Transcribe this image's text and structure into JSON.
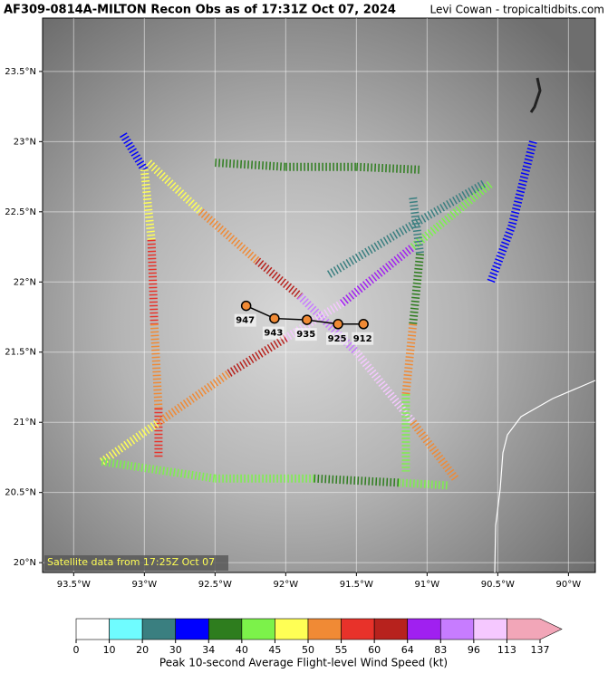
{
  "chart_data": {
    "type": "recon-map",
    "title": "AF309-0814A-MILTON Recon Obs as of 17:31Z Oct 07, 2024",
    "credit": "Levi Cowan - tropicaltidbits.com",
    "satellite_note": "Satellite data from 17:25Z Oct 07",
    "xlim": [
      -93.72,
      -89.81
    ],
    "ylim": [
      19.93,
      23.88
    ],
    "xticks": [
      {
        "value": -93.5,
        "label": "93.5°W"
      },
      {
        "value": -93,
        "label": "93°W"
      },
      {
        "value": -92.5,
        "label": "92.5°W"
      },
      {
        "value": -92,
        "label": "92°W"
      },
      {
        "value": -91.5,
        "label": "91.5°W"
      },
      {
        "value": -91,
        "label": "91°W"
      },
      {
        "value": -90.5,
        "label": "90.5°W"
      },
      {
        "value": -90,
        "label": "90°W"
      }
    ],
    "yticks": [
      {
        "value": 20,
        "label": "20°N"
      },
      {
        "value": 20.5,
        "label": "20.5°N"
      },
      {
        "value": 21,
        "label": "21°N"
      },
      {
        "value": 21.5,
        "label": "21.5°N"
      },
      {
        "value": 22,
        "label": "22°N"
      },
      {
        "value": 22.5,
        "label": "22.5°N"
      },
      {
        "value": 23,
        "label": "23°N"
      },
      {
        "value": 23.5,
        "label": "23.5°N"
      }
    ],
    "grid": true,
    "fixes": {
      "lon": [
        -92.28,
        -92.08,
        -91.85,
        -91.63,
        -91.45
      ],
      "lat": [
        21.83,
        21.74,
        21.73,
        21.7,
        21.7
      ],
      "pressure": [
        947,
        943,
        935,
        925,
        912
      ],
      "color": "#f08a35"
    },
    "legs": [
      {
        "lon": [
          -93.15,
          -93.0,
          -92.95,
          -92.93,
          -92.9,
          -92.9
        ],
        "lat": [
          23.05,
          22.8,
          22.3,
          21.7,
          21.1,
          20.75
        ],
        "wind": [
          32,
          45,
          55,
          50,
          55,
          50
        ]
      },
      {
        "lon": [
          -92.97,
          -92.6,
          -92.2,
          -91.9,
          -91.5,
          -91.1,
          -90.8
        ],
        "lat": [
          22.85,
          22.5,
          22.15,
          21.9,
          21.5,
          21.0,
          20.6
        ],
        "wind": [
          45,
          50,
          60,
          83,
          100,
          50,
          40
        ]
      },
      {
        "lon": [
          -93.3,
          -92.9,
          -92.4,
          -92.0,
          -91.6,
          -91.1,
          -90.55
        ],
        "lat": [
          20.72,
          21.0,
          21.35,
          21.6,
          21.85,
          22.25,
          22.7
        ],
        "wind": [
          45,
          50,
          62,
          100,
          80,
          40,
          22
        ]
      },
      {
        "lon": [
          -93.3,
          -92.5,
          -91.8,
          -91.2,
          -90.85
        ],
        "lat": [
          20.72,
          20.6,
          20.6,
          20.57,
          20.55
        ],
        "wind": [
          42,
          40,
          38,
          40,
          45
        ]
      },
      {
        "lon": [
          -92.5,
          -92.0,
          -91.5,
          -91.05
        ],
        "lat": [
          22.85,
          22.82,
          22.82,
          22.8
        ],
        "wind": [
          38,
          38,
          38,
          36
        ]
      },
      {
        "lon": [
          -91.1,
          -91.05,
          -91.1,
          -91.15,
          -91.15
        ],
        "lat": [
          22.6,
          22.2,
          21.7,
          21.2,
          20.65
        ],
        "wind": [
          22,
          35,
          50,
          40,
          38
        ]
      },
      {
        "lon": [
          -90.25,
          -90.4,
          -90.55
        ],
        "lat": [
          23.0,
          22.4,
          22.0
        ],
        "wind": [
          32,
          30,
          32
        ]
      },
      {
        "lon": [
          -90.6,
          -91.2,
          -91.7
        ],
        "lat": [
          22.7,
          22.35,
          22.05
        ],
        "wind": [
          20,
          20,
          30
        ]
      }
    ],
    "colorbar": {
      "label": "Peak 10-second Average Flight-level Wind Speed (kt)",
      "levels": [
        0,
        10,
        20,
        30,
        34,
        40,
        45,
        50,
        55,
        60,
        64,
        83,
        96,
        113,
        137
      ],
      "colors": [
        "#ffffff",
        "#6ffcff",
        "#3a7f80",
        "#0000ff",
        "#2e7d1e",
        "#7cf24a",
        "#ffff55",
        "#f08a35",
        "#e8322a",
        "#b7221d",
        "#a020f0",
        "#c77cff",
        "#f5c8ff",
        "#f2a6b8"
      ]
    }
  }
}
